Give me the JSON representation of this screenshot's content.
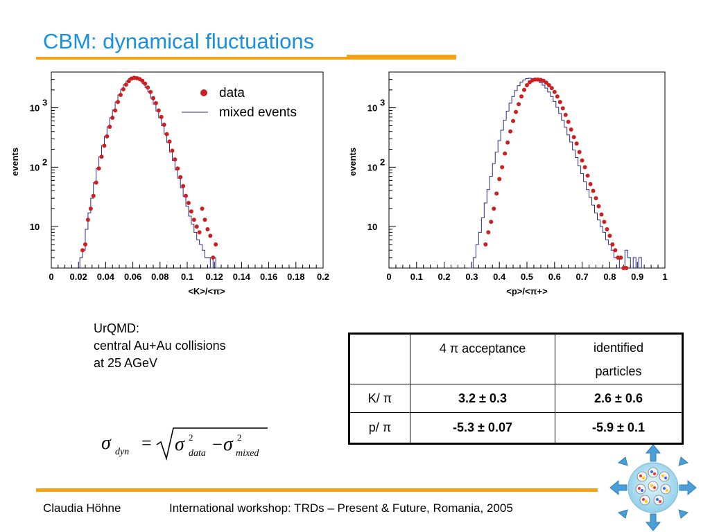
{
  "slide": {
    "title": "CBM: dynamical fluctuations",
    "info_lines": [
      "UrQMD:",
      "central Au+Au collisions",
      "at 25 AGeV"
    ],
    "footer_author": "Claudia Höhne",
    "footer_event": "International workshop: TRDs – Present & Future, Romania, 2005"
  },
  "table": {
    "header": [
      "",
      "4 π acceptance",
      "identified particles"
    ],
    "rows": [
      [
        "K/ π",
        "3.2 ± 0.3",
        "2.6 ± 0.6"
      ],
      [
        "p/ π",
        "-5.3 ± 0.07",
        "-5.9 ± 0.1"
      ]
    ]
  },
  "formula": {
    "sigma": "σ",
    "sub_dyn": "dyn",
    "eq": "=",
    "sub_data": "data",
    "minus": "−",
    "sub_mixed": "mixed",
    "sup": "2"
  },
  "colors": {
    "title": "#1a8fe0",
    "accent": "#f5a21b",
    "data_marker": "#cc1f1f",
    "mixed_line": "#2b2b8c"
  },
  "legend": {
    "data": "data",
    "mixed": "mixed events"
  },
  "chart_data": [
    {
      "type": "scatter",
      "xlabel": "<K>/<π>",
      "ylabel": "events",
      "xlim": [
        0,
        0.2
      ],
      "ylim_log": [
        2,
        4000
      ],
      "yscale": "log",
      "xticks": [
        0,
        0.02,
        0.04,
        0.06,
        0.08,
        0.1,
        0.12,
        0.14,
        0.16,
        0.18,
        0.2
      ],
      "xtick_labels": [
        "0",
        "0.02",
        "0.04",
        "0.06",
        "0.08",
        "0.1",
        "0.12",
        "0.14",
        "0.16",
        "0.18",
        "0.2"
      ],
      "yticks": [
        10,
        100,
        1000
      ],
      "ytick_labels": [
        "10",
        "10",
        "10"
      ],
      "ytick_sups": [
        "",
        "2",
        "3"
      ],
      "series": [
        {
          "name": "data",
          "x": [
            0.023,
            0.025,
            0.027,
            0.029,
            0.031,
            0.033,
            0.035,
            0.037,
            0.039,
            0.041,
            0.043,
            0.045,
            0.047,
            0.049,
            0.051,
            0.053,
            0.055,
            0.057,
            0.059,
            0.061,
            0.063,
            0.065,
            0.067,
            0.069,
            0.071,
            0.073,
            0.075,
            0.077,
            0.079,
            0.081,
            0.083,
            0.085,
            0.087,
            0.089,
            0.091,
            0.093,
            0.095,
            0.097,
            0.099,
            0.101,
            0.103,
            0.105,
            0.107,
            0.109,
            0.111,
            0.113,
            0.115,
            0.117,
            0.119,
            0.121
          ],
          "y": [
            4,
            5,
            13,
            20,
            33,
            55,
            95,
            150,
            230,
            330,
            480,
            680,
            900,
            1250,
            1650,
            2050,
            2450,
            2800,
            3100,
            3200,
            3150,
            3050,
            2850,
            2550,
            2200,
            1850,
            1450,
            1200,
            900,
            700,
            520,
            360,
            270,
            190,
            135,
            95,
            68,
            48,
            33,
            25,
            18,
            13,
            10,
            8,
            20,
            13,
            9,
            7,
            3,
            5
          ]
        },
        {
          "name": "mixed events",
          "x": [
            0.022,
            0.024,
            0.026,
            0.028,
            0.03,
            0.032,
            0.034,
            0.036,
            0.038,
            0.04,
            0.042,
            0.044,
            0.046,
            0.048,
            0.05,
            0.052,
            0.054,
            0.056,
            0.058,
            0.06,
            0.062,
            0.064,
            0.066,
            0.068,
            0.07,
            0.072,
            0.074,
            0.076,
            0.078,
            0.08,
            0.082,
            0.084,
            0.086,
            0.088,
            0.09,
            0.092,
            0.094,
            0.096,
            0.098,
            0.1,
            0.102,
            0.104,
            0.106,
            0.108,
            0.11,
            0.112,
            0.114,
            0.116,
            0.118,
            0.12,
            0.122
          ],
          "y": [
            3,
            4,
            9,
            17,
            30,
            55,
            95,
            150,
            230,
            330,
            480,
            680,
            920,
            1250,
            1650,
            2050,
            2450,
            2800,
            3100,
            3200,
            3150,
            3050,
            2850,
            2550,
            2200,
            1850,
            1450,
            1150,
            880,
            680,
            500,
            360,
            260,
            180,
            130,
            90,
            65,
            45,
            32,
            22,
            15,
            11,
            8,
            6,
            5,
            4,
            3,
            3,
            2,
            3,
            2
          ]
        }
      ]
    },
    {
      "type": "scatter",
      "xlabel": "<p>/<π+>",
      "ylabel": "events",
      "xlim": [
        0,
        1
      ],
      "ylim_log": [
        2,
        4000
      ],
      "yscale": "log",
      "xticks": [
        0,
        0.1,
        0.2,
        0.3,
        0.4,
        0.5,
        0.6,
        0.7,
        0.8,
        0.9,
        1
      ],
      "xtick_labels": [
        "0",
        "0.1",
        "0.2",
        "0.3",
        "0.4",
        "0.5",
        "0.6",
        "0.7",
        "0.8",
        "0.9",
        "1"
      ],
      "yticks": [
        10,
        100,
        1000
      ],
      "ytick_labels": [
        "10",
        "10",
        "10"
      ],
      "ytick_sups": [
        "",
        "2",
        "3"
      ],
      "series": [
        {
          "name": "data",
          "x": [
            0.35,
            0.36,
            0.37,
            0.38,
            0.39,
            0.4,
            0.41,
            0.42,
            0.43,
            0.44,
            0.45,
            0.46,
            0.47,
            0.48,
            0.49,
            0.5,
            0.51,
            0.52,
            0.53,
            0.54,
            0.55,
            0.56,
            0.57,
            0.58,
            0.59,
            0.6,
            0.61,
            0.62,
            0.63,
            0.64,
            0.65,
            0.66,
            0.67,
            0.68,
            0.69,
            0.7,
            0.71,
            0.72,
            0.73,
            0.74,
            0.75,
            0.76,
            0.77,
            0.78,
            0.79,
            0.8,
            0.81,
            0.82,
            0.83,
            0.84,
            0.85,
            0.86,
            0.87
          ],
          "y": [
            5,
            8,
            12,
            20,
            36,
            63,
            100,
            170,
            260,
            400,
            600,
            850,
            1150,
            1550,
            2000,
            2400,
            2700,
            2900,
            3000,
            3000,
            2950,
            2850,
            2650,
            2400,
            2150,
            1850,
            1550,
            1250,
            980,
            760,
            580,
            430,
            320,
            250,
            180,
            130,
            100,
            72,
            52,
            40,
            30,
            22,
            16,
            12,
            9,
            7,
            5,
            4,
            3,
            3,
            2,
            2,
            1.8
          ]
        },
        {
          "name": "mixed events",
          "x": [
            0.29,
            0.3,
            0.31,
            0.32,
            0.33,
            0.34,
            0.35,
            0.36,
            0.37,
            0.38,
            0.39,
            0.4,
            0.41,
            0.42,
            0.43,
            0.44,
            0.45,
            0.46,
            0.47,
            0.48,
            0.49,
            0.5,
            0.51,
            0.52,
            0.53,
            0.54,
            0.55,
            0.56,
            0.57,
            0.58,
            0.59,
            0.6,
            0.61,
            0.62,
            0.63,
            0.64,
            0.65,
            0.66,
            0.67,
            0.68,
            0.69,
            0.7,
            0.71,
            0.72,
            0.73,
            0.74,
            0.75,
            0.76,
            0.77,
            0.78,
            0.79,
            0.8,
            0.81,
            0.82,
            0.83,
            0.84,
            0.85,
            0.86,
            0.87,
            0.88,
            0.89,
            0.9,
            0.91,
            0.92
          ],
          "y": [
            2,
            2,
            3,
            5,
            8,
            14,
            25,
            42,
            70,
            115,
            180,
            280,
            420,
            620,
            880,
            1200,
            1550,
            1950,
            2350,
            2700,
            2950,
            3100,
            3150,
            3100,
            3000,
            2850,
            2650,
            2400,
            2150,
            1850,
            1550,
            1280,
            1020,
            800,
            620,
            470,
            350,
            265,
            195,
            145,
            105,
            78,
            57,
            42,
            31,
            23,
            17,
            13,
            10,
            8,
            6,
            5,
            4,
            3,
            3,
            2,
            2,
            4,
            3,
            2,
            3,
            2,
            3,
            2
          ]
        }
      ]
    }
  ]
}
